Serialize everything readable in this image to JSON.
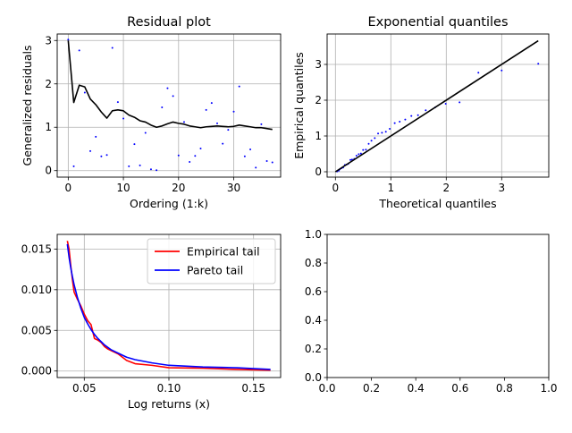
{
  "chart_data": [
    {
      "type": "scatter",
      "title": "Residual plot",
      "xlabel": "Ordering (1:k)",
      "ylabel": "Generalized residuals",
      "xlim": [
        -2,
        38.5
      ],
      "ylim": [
        -0.15,
        3.15
      ],
      "xticks": [
        0,
        10,
        20,
        30
      ],
      "yticks": [
        0,
        1,
        2,
        3
      ],
      "grid": true,
      "series": [
        {
          "style": "points",
          "color": "#0000ff",
          "x": [
            0,
            1,
            2,
            3,
            4,
            5,
            6,
            7,
            8,
            9,
            10,
            11,
            12,
            13,
            14,
            15,
            16,
            17,
            18,
            19,
            20,
            21,
            22,
            23,
            24,
            25,
            26,
            27,
            28,
            29,
            30,
            31,
            32,
            33,
            34,
            35,
            36,
            37
          ],
          "y": [
            3.02,
            0.1,
            2.77,
            1.8,
            0.45,
            0.78,
            0.33,
            0.36,
            2.83,
            1.58,
            1.2,
            0.1,
            0.61,
            0.12,
            0.87,
            0.03,
            0.01,
            1.46,
            1.9,
            1.72,
            0.35,
            1.12,
            0.2,
            0.34,
            0.51,
            1.4,
            1.56,
            1.09,
            0.62,
            0.94,
            1.36,
            1.94,
            0.33,
            0.49,
            0.07,
            1.07,
            0.22,
            0.19
          ]
        },
        {
          "style": "line",
          "color": "#000000",
          "x": [
            0,
            1,
            2,
            3,
            4,
            5,
            6,
            7,
            8,
            9,
            10,
            11,
            12,
            13,
            14,
            15,
            16,
            17,
            18,
            19,
            20,
            21,
            22,
            23,
            24,
            25,
            26,
            27,
            28,
            29,
            30,
            31,
            32,
            33,
            34,
            35,
            36,
            37
          ],
          "y": [
            3.0,
            1.57,
            1.97,
            1.93,
            1.65,
            1.52,
            1.35,
            1.21,
            1.38,
            1.4,
            1.38,
            1.28,
            1.23,
            1.15,
            1.12,
            1.05,
            1.0,
            1.03,
            1.08,
            1.12,
            1.09,
            1.07,
            1.03,
            1.01,
            0.99,
            1.01,
            1.02,
            1.03,
            1.02,
            1.01,
            1.02,
            1.05,
            1.03,
            1.01,
            0.99,
            0.99,
            0.97,
            0.95
          ]
        }
      ]
    },
    {
      "type": "scatter",
      "title": "Exponential quantiles",
      "xlabel": "Theoretical quantiles",
      "ylabel": "Empirical quantiles",
      "xlim": [
        -0.15,
        3.85
      ],
      "ylim": [
        -0.15,
        3.85
      ],
      "xticks": [
        0,
        1,
        2,
        3
      ],
      "yticks": [
        0,
        1,
        2,
        3
      ],
      "grid": true,
      "series": [
        {
          "style": "points",
          "color": "#0000ff",
          "x": [
            0.03,
            0.06,
            0.08,
            0.11,
            0.14,
            0.17,
            0.2,
            0.23,
            0.27,
            0.3,
            0.34,
            0.38,
            0.42,
            0.46,
            0.5,
            0.55,
            0.6,
            0.65,
            0.71,
            0.77,
            0.84,
            0.91,
            0.98,
            1.07,
            1.16,
            1.26,
            1.37,
            1.49,
            1.63,
            1.8,
            1.99,
            2.24,
            2.58,
            3.0,
            3.66
          ],
          "y": [
            0.01,
            0.03,
            0.07,
            0.1,
            0.12,
            0.19,
            0.2,
            0.22,
            0.33,
            0.34,
            0.36,
            0.45,
            0.49,
            0.51,
            0.61,
            0.62,
            0.78,
            0.87,
            0.94,
            1.07,
            1.09,
            1.12,
            1.2,
            1.36,
            1.4,
            1.46,
            1.56,
            1.58,
            1.72,
            1.8,
            1.9,
            1.94,
            2.77,
            2.83,
            3.02
          ]
        },
        {
          "style": "line",
          "color": "#000000",
          "x": [
            0.0,
            3.66
          ],
          "y": [
            0.0,
            3.66
          ]
        }
      ]
    },
    {
      "type": "line",
      "title": "",
      "xlabel": "Log returns (x)",
      "ylabel": "",
      "xlim": [
        0.034,
        0.166
      ],
      "ylim": [
        -0.0008,
        0.0168
      ],
      "xticks": [
        0.05,
        0.1,
        0.15
      ],
      "xtick_labels": [
        "0.05",
        "0.10",
        "0.15"
      ],
      "yticks": [
        0,
        0.005,
        0.01,
        0.015
      ],
      "ytick_labels": [
        "0.000",
        "0.005",
        "0.010",
        "0.015"
      ],
      "grid": true,
      "legend": "upper right",
      "series": [
        {
          "name": "Empirical tail",
          "color": "#ff0000",
          "x": [
            0.04,
            0.041,
            0.042,
            0.043,
            0.044,
            0.046,
            0.048,
            0.05,
            0.052,
            0.054,
            0.056,
            0.058,
            0.06,
            0.062,
            0.064,
            0.066,
            0.07,
            0.075,
            0.08,
            0.09,
            0.1,
            0.12,
            0.14,
            0.16
          ],
          "y": [
            0.016,
            0.015,
            0.013,
            0.0112,
            0.0097,
            0.0088,
            0.008,
            0.007,
            0.0062,
            0.0057,
            0.004,
            0.0038,
            0.0035,
            0.003,
            0.0027,
            0.0025,
            0.0021,
            0.0013,
            0.0009,
            0.0007,
            0.0004,
            0.00035,
            0.0002,
            0.0001
          ]
        },
        {
          "name": "Pareto tail",
          "color": "#0000ff",
          "x": [
            0.04,
            0.041,
            0.042,
            0.043,
            0.044,
            0.046,
            0.048,
            0.05,
            0.052,
            0.054,
            0.056,
            0.058,
            0.06,
            0.062,
            0.064,
            0.066,
            0.07,
            0.075,
            0.08,
            0.09,
            0.1,
            0.12,
            0.14,
            0.16
          ],
          "y": [
            0.0156,
            0.014,
            0.0127,
            0.0116,
            0.0106,
            0.009,
            0.0077,
            0.0066,
            0.0058,
            0.0051,
            0.0045,
            0.004,
            0.0036,
            0.0032,
            0.0029,
            0.0026,
            0.0022,
            0.0017,
            0.0014,
            0.001,
            0.0007,
            0.0005,
            0.0004,
            0.0002
          ]
        }
      ]
    },
    {
      "type": "line",
      "title": "",
      "xlabel": "",
      "ylabel": "",
      "xlim": [
        0,
        1
      ],
      "ylim": [
        0,
        1
      ],
      "xticks": [
        0,
        0.2,
        0.4,
        0.6,
        0.8,
        1.0
      ],
      "xtick_labels": [
        "0.0",
        "0.2",
        "0.4",
        "0.6",
        "0.8",
        "1.0"
      ],
      "yticks": [
        0,
        0.2,
        0.4,
        0.6,
        0.8,
        1.0
      ],
      "ytick_labels": [
        "0.0",
        "0.2",
        "0.4",
        "0.6",
        "0.8",
        "1.0"
      ],
      "grid": false,
      "series": []
    }
  ]
}
